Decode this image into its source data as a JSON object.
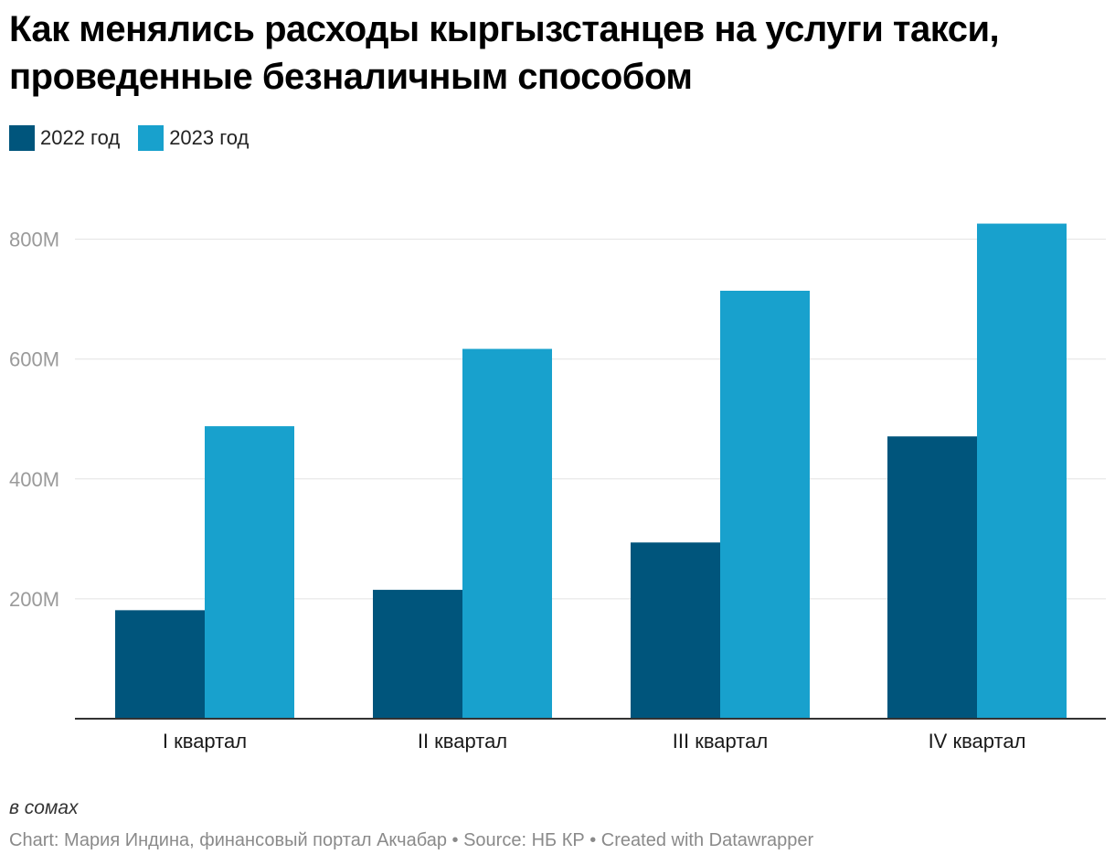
{
  "chart_data": {
    "type": "bar",
    "title": "Как менялись расходы кыргызстанцев на услуги такси, проведенные безналичным способом",
    "categories": [
      "I квартал",
      "II квартал",
      "III квартал",
      "IV квартал"
    ],
    "series": [
      {
        "name": "2022 год",
        "color": "#00557c",
        "values": [
          181,
          215,
          294,
          471
        ]
      },
      {
        "name": "2023 год",
        "color": "#18a1cd",
        "values": [
          488,
          617,
          714,
          826
        ]
      }
    ],
    "unit": "M",
    "ylim": [
      0,
      850
    ],
    "yticks": [
      200,
      400,
      600,
      800
    ],
    "ytick_labels": [
      "200M",
      "400M",
      "600M",
      "800M"
    ],
    "grid": true,
    "legend_position": "top-left",
    "note": "в сомах",
    "footer": "Chart: Мария Индина, финансовый портал Акчабар • Source: НБ КР • Created with Datawrapper"
  }
}
